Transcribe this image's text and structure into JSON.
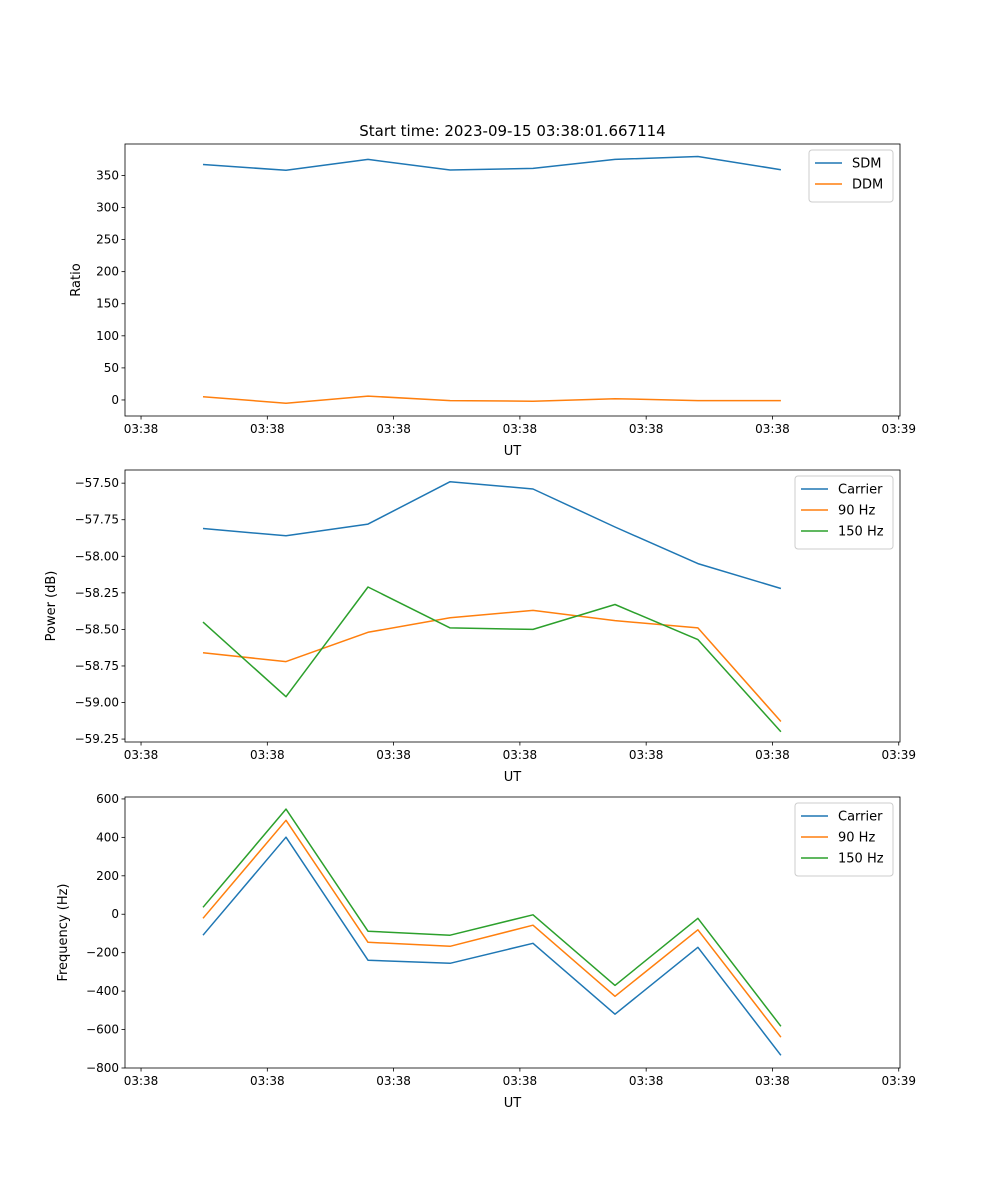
{
  "chart_data": [
    {
      "type": "line",
      "title": "Start time: 2023-09-15 03:38:01.667114",
      "xlabel": "UT",
      "ylabel": "Ratio",
      "x": [
        4.91,
        11.48,
        17.97,
        24.47,
        31.04,
        37.53,
        44.1,
        50.67
      ],
      "xlim": [
        -1.27,
        60.1
      ],
      "xticks": [
        0,
        10,
        20,
        30,
        40,
        50,
        60
      ],
      "xtick_labels": [
        "03:38",
        "03:38",
        "03:38",
        "03:38",
        "03:38",
        "03:38",
        "03:39"
      ],
      "ylim": [
        -25,
        399
      ],
      "yticks": [
        0,
        50,
        100,
        150,
        200,
        250,
        300,
        350
      ],
      "ytick_labels": [
        "0",
        "50",
        "100",
        "150",
        "200",
        "250",
        "300",
        "350"
      ],
      "legend": "top-right",
      "series": [
        {
          "name": "SDM",
          "color": "#1f77b4",
          "values": [
            367,
            358,
            375,
            358.5,
            361,
            375,
            379.5,
            359
          ]
        },
        {
          "name": "DDM",
          "color": "#ff7f0e",
          "values": [
            5,
            -5,
            6,
            -1,
            -2,
            2,
            -1,
            -1
          ]
        }
      ]
    },
    {
      "type": "line",
      "xlabel": "UT",
      "ylabel": "Power (dB)",
      "x": [
        4.91,
        11.48,
        17.97,
        24.47,
        31.04,
        37.53,
        44.1,
        50.67
      ],
      "xlim": [
        -1.27,
        60.1
      ],
      "xticks": [
        0,
        10,
        20,
        30,
        40,
        50,
        60
      ],
      "xtick_labels": [
        "03:38",
        "03:38",
        "03:38",
        "03:38",
        "03:38",
        "03:38",
        "03:39"
      ],
      "ylim": [
        -59.27,
        -57.41
      ],
      "yticks": [
        -57.5,
        -57.75,
        -58.0,
        -58.25,
        -58.5,
        -58.75,
        -59.0,
        -59.25
      ],
      "ytick_labels": [
        "−57.50",
        "−57.75",
        "−58.00",
        "−58.25",
        "−58.50",
        "−58.75",
        "−59.00",
        "−59.25"
      ],
      "legend": "top-right",
      "series": [
        {
          "name": "Carrier",
          "color": "#1f77b4",
          "values": [
            -57.81,
            -57.86,
            -57.78,
            -57.49,
            -57.54,
            -57.8,
            -58.05,
            -58.22
          ]
        },
        {
          "name": "90 Hz",
          "color": "#ff7f0e",
          "values": [
            -58.66,
            -58.72,
            -58.52,
            -58.42,
            -58.37,
            -58.44,
            -58.49,
            -59.13
          ]
        },
        {
          "name": "150 Hz",
          "color": "#2ca02c",
          "values": [
            -58.45,
            -58.96,
            -58.21,
            -58.49,
            -58.5,
            -58.33,
            -58.57,
            -59.2
          ]
        }
      ]
    },
    {
      "type": "line",
      "xlabel": "UT",
      "ylabel": "Frequency (Hz)",
      "x": [
        4.91,
        11.48,
        17.97,
        24.47,
        31.04,
        37.53,
        44.1,
        50.67
      ],
      "xlim": [
        -1.27,
        60.1
      ],
      "xticks": [
        0,
        10,
        20,
        30,
        40,
        50,
        60
      ],
      "xtick_labels": [
        "03:38",
        "03:38",
        "03:38",
        "03:38",
        "03:38",
        "03:38",
        "03:39"
      ],
      "ylim": [
        -800,
        610
      ],
      "yticks": [
        600,
        400,
        200,
        0,
        -200,
        -400,
        -600,
        -800
      ],
      "ytick_labels": [
        "600",
        "400",
        "200",
        "0",
        "−200",
        "−400",
        "−600",
        "−800"
      ],
      "legend": "top-right",
      "series": [
        {
          "name": "Carrier",
          "color": "#1f77b4",
          "values": [
            -109,
            401,
            -239,
            -255,
            -151,
            -520,
            -172,
            -734
          ]
        },
        {
          "name": "90 Hz",
          "color": "#ff7f0e",
          "values": [
            -21,
            489,
            -146,
            -167,
            -57,
            -427,
            -81,
            -640
          ]
        },
        {
          "name": "150 Hz",
          "color": "#2ca02c",
          "values": [
            36,
            547,
            -88,
            -109,
            -3,
            -370,
            -21,
            -583
          ]
        }
      ]
    }
  ]
}
